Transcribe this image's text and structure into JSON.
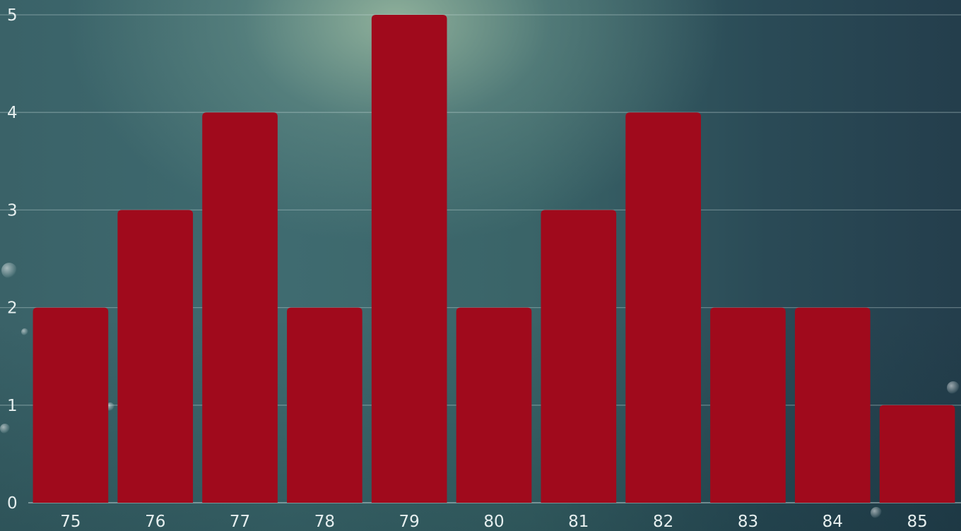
{
  "chart_data": {
    "type": "bar",
    "categories": [
      "75",
      "76",
      "77",
      "78",
      "79",
      "80",
      "81",
      "82",
      "83",
      "84",
      "85"
    ],
    "values": [
      2,
      3,
      4,
      2,
      5,
      2,
      3,
      4,
      2,
      2,
      1
    ],
    "title": "",
    "xlabel": "",
    "ylabel": "",
    "ylim": [
      0,
      5
    ],
    "yticks": [
      "0",
      "1",
      "2",
      "3",
      "4",
      "5"
    ],
    "grid": true,
    "legend": "none",
    "bar_color": "#a00a1c"
  }
}
